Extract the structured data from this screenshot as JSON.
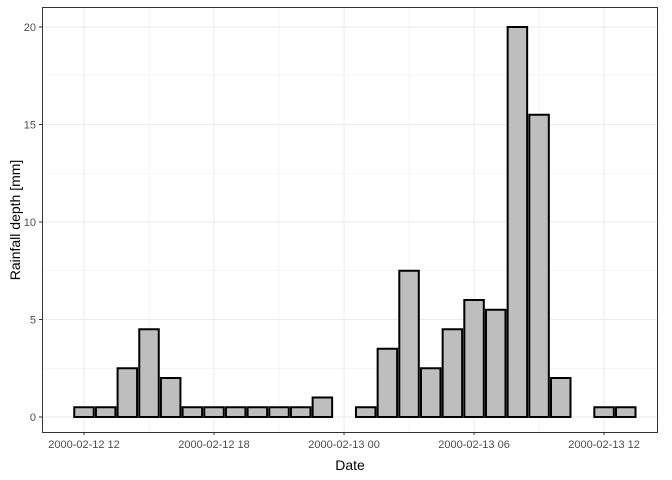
{
  "chart_data": {
    "type": "bar",
    "xlabel": "Date",
    "ylabel": "Rainfall depth [mm]",
    "x_start": "2000-02-12 12:00",
    "x_interval_hours": 1,
    "categories": [
      "2000-02-12 12:00",
      "2000-02-12 13:00",
      "2000-02-12 14:00",
      "2000-02-12 15:00",
      "2000-02-12 16:00",
      "2000-02-12 17:00",
      "2000-02-12 18:00",
      "2000-02-12 19:00",
      "2000-02-12 20:00",
      "2000-02-12 21:00",
      "2000-02-12 22:00",
      "2000-02-12 23:00",
      "2000-02-13 00:00",
      "2000-02-13 01:00",
      "2000-02-13 02:00",
      "2000-02-13 03:00",
      "2000-02-13 04:00",
      "2000-02-13 05:00",
      "2000-02-13 06:00",
      "2000-02-13 07:00",
      "2000-02-13 08:00",
      "2000-02-13 09:00",
      "2000-02-13 10:00",
      "2000-02-13 11:00",
      "2000-02-13 12:00",
      "2000-02-13 13:00"
    ],
    "values": [
      0.5,
      0.5,
      2.5,
      4.5,
      2,
      0.5,
      0.5,
      0.5,
      0.5,
      0.5,
      0.5,
      1,
      0,
      0.5,
      3.5,
      7.5,
      2.5,
      4.5,
      6,
      5.5,
      20,
      15.5,
      2,
      0,
      0.5,
      0.5
    ],
    "xticks": [
      {
        "label": "2000-02-12 12",
        "index": 0
      },
      {
        "label": "2000-02-12 18",
        "index": 6
      },
      {
        "label": "2000-02-13 00",
        "index": 12
      },
      {
        "label": "2000-02-13 06",
        "index": 18
      },
      {
        "label": "2000-02-13 12",
        "index": 24
      }
    ],
    "yticks": [
      0,
      5,
      10,
      15,
      20
    ],
    "ylim": [
      -0.5,
      21
    ],
    "grid": true,
    "colors": {
      "bar_fill": "#bebebe",
      "bar_stroke": "#000000",
      "grid": "#ebebeb"
    }
  }
}
